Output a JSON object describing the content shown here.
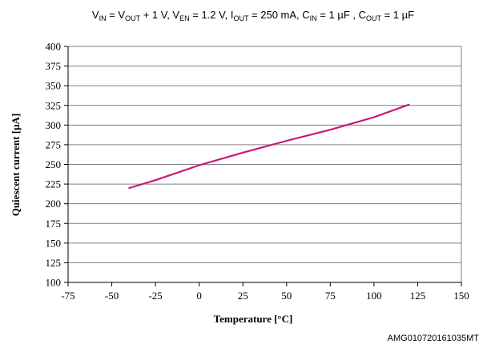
{
  "conditions": {
    "parts": [
      {
        "t": "V"
      },
      {
        "t": "IN",
        "sub": true
      },
      {
        "t": " = V"
      },
      {
        "t": "OUT",
        "sub": true
      },
      {
        "t": " + 1 V, V"
      },
      {
        "t": "EN",
        "sub": true
      },
      {
        "t": " = 1.2 V, I"
      },
      {
        "t": "OUT",
        "sub": true
      },
      {
        "t": " = 250 mA, C"
      },
      {
        "t": "IN",
        "sub": true
      },
      {
        "t": " = 1 µF , C"
      },
      {
        "t": "OUT",
        "sub": true
      },
      {
        "t": " = 1 µF"
      }
    ]
  },
  "figure_code": "AMG010720161035MT",
  "chart_data": {
    "type": "line",
    "xlabel": "Temperature [°C]",
    "ylabel": "Quiescent current [µA]",
    "xlim": [
      -75,
      150
    ],
    "ylim": [
      100,
      400
    ],
    "xticks": [
      -75,
      -50,
      -25,
      0,
      25,
      50,
      75,
      100,
      125,
      150
    ],
    "yticks": [
      100,
      125,
      150,
      175,
      200,
      225,
      250,
      275,
      300,
      325,
      350,
      375,
      400
    ],
    "grid": "horizontal",
    "series": [
      {
        "color": "#c8177a",
        "x": [
          -40,
          -25,
          0,
          25,
          50,
          75,
          100,
          120
        ],
        "y": [
          220,
          230,
          249,
          265,
          280,
          294,
          310,
          326
        ]
      }
    ]
  }
}
